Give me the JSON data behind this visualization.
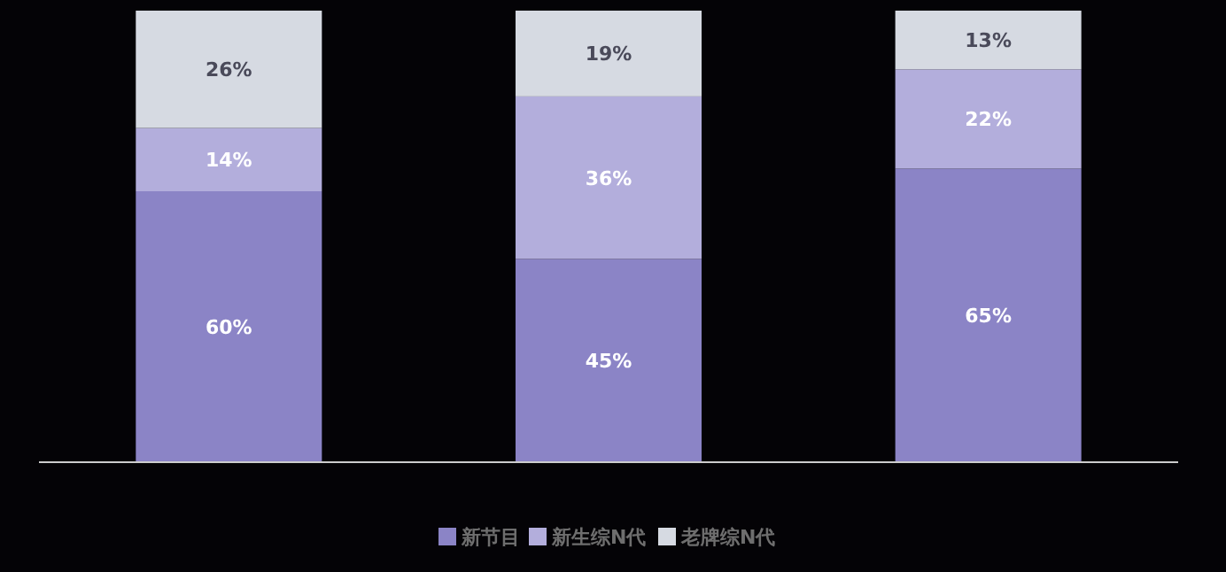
{
  "chart_data": {
    "type": "bar",
    "stacked": true,
    "categories": [
      null,
      null,
      null
    ],
    "data_labels": true,
    "legend": "bottom",
    "series": [
      {
        "name": "新节目",
        "color": "#8b84c6",
        "values": [
          60,
          45,
          65
        ],
        "value_labels": [
          "60%",
          "45%",
          "65%"
        ]
      },
      {
        "name": "新生综N代",
        "color": "#b3aedc",
        "values": [
          14,
          36,
          22
        ],
        "value_labels": [
          "14%",
          "36%",
          "22%"
        ]
      },
      {
        "name": "老牌综N代",
        "color": "#d6dae2",
        "values": [
          26,
          19,
          13
        ],
        "value_labels": [
          "26%",
          "19%",
          "13%"
        ]
      }
    ]
  }
}
